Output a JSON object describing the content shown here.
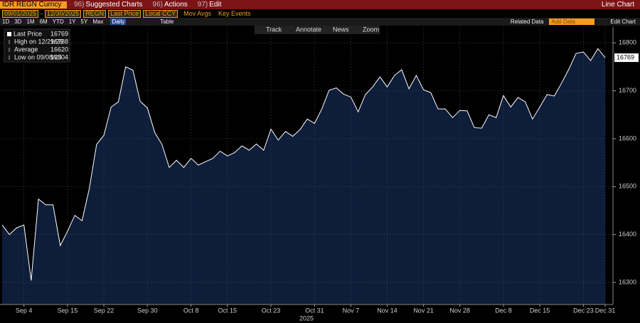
{
  "ui": {
    "security": "IDR REGN Curncy",
    "menus": [
      {
        "num": "96)",
        "label": "Suggested Charts"
      },
      {
        "num": "96)",
        "label": "Actions"
      },
      {
        "num": "97)",
        "label": "Edit"
      }
    ],
    "chart_kind": "Line Chart",
    "start_date": "09/01/2025",
    "end_date": "12/30/2025",
    "fields": [
      "REGN",
      "Last Price",
      "Local CCY"
    ],
    "options": [
      "Mov Avgs",
      "Key Events"
    ],
    "periods": [
      "1D",
      "3D",
      "1M",
      "6M",
      "YTD",
      "1Y",
      "5Y",
      "Max"
    ],
    "frequency": "Daily",
    "table": "Table",
    "related": "Related Data",
    "add_data": "Add Data",
    "edit_chart": "Edit Chart",
    "tools": [
      "Track",
      "Annotate",
      "News",
      "Zoom"
    ]
  },
  "chart_data": {
    "type": "line",
    "categories": [
      null,
      null,
      null,
      "Sep 4",
      null,
      null,
      null,
      null,
      null,
      "Sep 15",
      null,
      null,
      null,
      null,
      "Sep 22",
      null,
      null,
      null,
      null,
      null,
      "Sep 30",
      null,
      null,
      null,
      null,
      null,
      "Oct 8",
      null,
      null,
      null,
      null,
      "Oct 15",
      null,
      null,
      null,
      null,
      null,
      "Oct 23",
      null,
      null,
      null,
      null,
      null,
      "Oct 31",
      null,
      null,
      null,
      null,
      "Nov 7",
      null,
      null,
      null,
      null,
      "Nov 14",
      null,
      null,
      null,
      null,
      "Nov 21",
      null,
      null,
      null,
      null,
      "Nov 28",
      null,
      null,
      null,
      null,
      null,
      "Dec 8",
      null,
      null,
      null,
      null,
      "Dec 15",
      null,
      null,
      null,
      null,
      null,
      "Dec 23",
      null,
      null,
      "Dec 31"
    ],
    "xlabel": "2025",
    "series": [
      {
        "name": "Last Price",
        "color": "#ffffff",
        "fill": "#0e1d3a",
        "values": [
          16420,
          16400,
          16414,
          16420,
          16304,
          16474,
          16462,
          16462,
          16377,
          16407,
          16440,
          16429,
          16496,
          16588,
          16607,
          16666,
          16677,
          16750,
          16743,
          16678,
          16664,
          16613,
          16588,
          16540,
          16555,
          16540,
          16559,
          16545,
          16552,
          16559,
          16574,
          16564,
          16571,
          16585,
          16576,
          16589,
          16576,
          16620,
          16597,
          16615,
          16605,
          16619,
          16641,
          16632,
          16662,
          16701,
          16706,
          16693,
          16687,
          16656,
          16692,
          16708,
          16729,
          16708,
          16732,
          16744,
          16704,
          16732,
          16702,
          16696,
          16662,
          16662,
          16644,
          16659,
          16658,
          16623,
          16622,
          16650,
          16644,
          16690,
          16666,
          16686,
          16677,
          16641,
          16666,
          16692,
          16689,
          16716,
          16745,
          16778,
          16781,
          16763,
          16788,
          16769
        ]
      }
    ],
    "legend": [
      {
        "label": "Last Price",
        "value": 16769
      },
      {
        "label": "High on 12/29/25",
        "value": 16788
      },
      {
        "label": "Average",
        "value": 16620
      },
      {
        "label": "Low on 09/08/25",
        "value": 16304
      }
    ],
    "ylim": [
      16254,
      16833
    ],
    "yticks": [
      16300,
      16400,
      16500,
      16600,
      16700,
      16800
    ],
    "grid": true
  }
}
